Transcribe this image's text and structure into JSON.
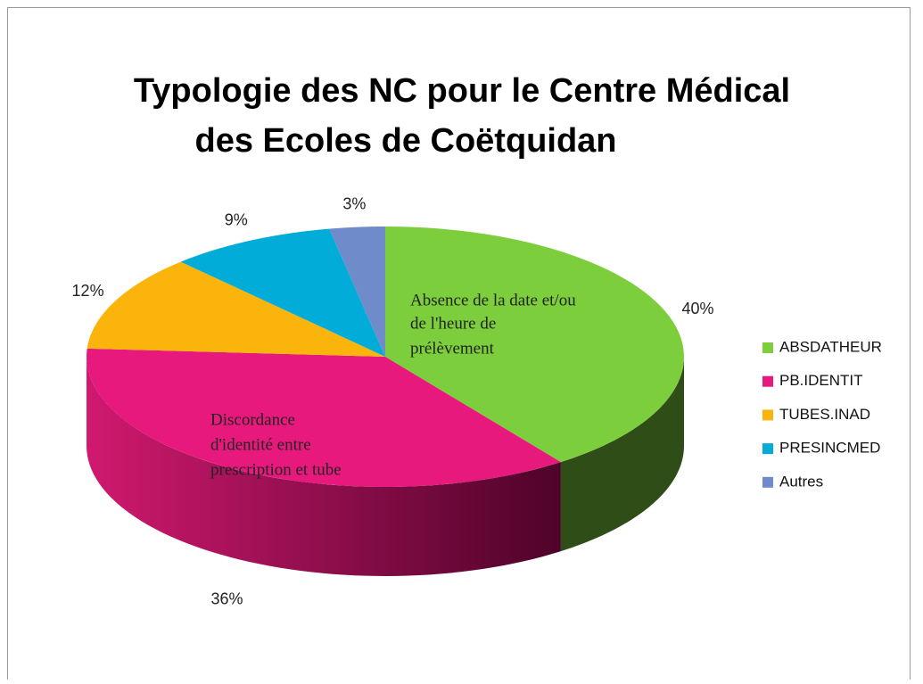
{
  "chart_data": {
    "type": "pie",
    "title": [
      "Typologie des NC pour le Centre Médical",
      "des Ecoles de Coëtquidan"
    ],
    "categories": [
      "ABSDATHEUR",
      "PB.IDENTIT",
      "TUBES.INAD",
      "PRESINCMED",
      "Autres"
    ],
    "values": [
      40,
      36,
      12,
      9,
      3
    ],
    "value_labels": [
      "40%",
      "36%",
      "12%",
      "9%",
      "3%"
    ],
    "colors": [
      "#7dce3c",
      "#e8197c",
      "#fbb40c",
      "#02acd8",
      "#6f8bc9"
    ],
    "annotations": [
      [
        "Absence de la date et/ou",
        "de l'heure de",
        "prélèvement"
      ],
      [
        "Discordance",
        "d'identité entre",
        "prescription et tube"
      ]
    ],
    "legend": "right"
  }
}
